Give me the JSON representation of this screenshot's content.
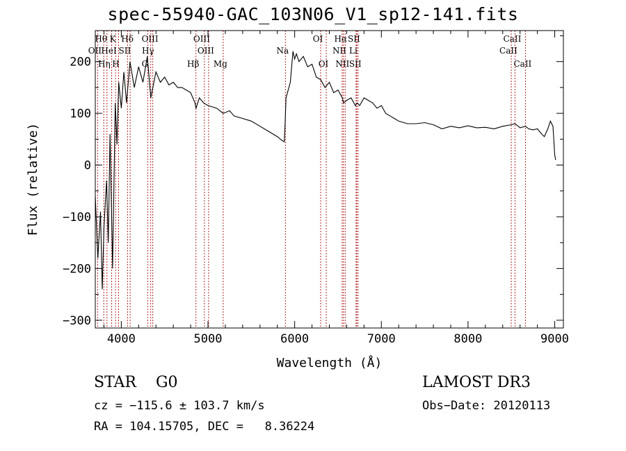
{
  "chart_data": {
    "type": "line",
    "title": "spec-55940-GAC_103N06_V1_sp12-141.fits",
    "xlabel": "Wavelength (Å)",
    "ylabel": "Flux (relative)",
    "xlim": [
      3700,
      9100
    ],
    "ylim": [
      -315,
      260
    ],
    "xticks": [
      4000,
      5000,
      6000,
      7000,
      8000,
      9000
    ],
    "yticks": [
      -300,
      -200,
      -100,
      0,
      100,
      200
    ],
    "series": [
      {
        "name": "flux",
        "color": "#000000",
        "x": [
          3700,
          3730,
          3760,
          3780,
          3800,
          3830,
          3850,
          3870,
          3900,
          3930,
          3950,
          3970,
          4000,
          4030,
          4060,
          4100,
          4150,
          4200,
          4250,
          4300,
          4340,
          4400,
          4450,
          4500,
          4550,
          4600,
          4650,
          4700,
          4750,
          4800,
          4850,
          4862,
          4900,
          4950,
          5000,
          5100,
          5175,
          5250,
          5300,
          5400,
          5500,
          5600,
          5700,
          5800,
          5850,
          5880,
          5890,
          5900,
          5950,
          5980,
          6000,
          6020,
          6050,
          6100,
          6150,
          6200,
          6250,
          6300,
          6350,
          6400,
          6450,
          6500,
          6550,
          6563,
          6600,
          6650,
          6700,
          6720,
          6750,
          6800,
          6850,
          6900,
          6950,
          7000,
          7050,
          7100,
          7150,
          7200,
          7300,
          7400,
          7500,
          7600,
          7700,
          7800,
          7900,
          8000,
          8100,
          8200,
          8300,
          8400,
          8500,
          8542,
          8600,
          8662,
          8700,
          8750,
          8800,
          8850,
          8880,
          8920,
          8950,
          8980,
          9000,
          9010
        ],
        "y": [
          -60,
          -180,
          -90,
          -240,
          -120,
          -30,
          -150,
          60,
          -200,
          120,
          40,
          160,
          110,
          180,
          120,
          200,
          150,
          190,
          160,
          210,
          130,
          180,
          160,
          170,
          155,
          160,
          150,
          150,
          145,
          140,
          120,
          110,
          130,
          120,
          115,
          110,
          100,
          105,
          95,
          90,
          85,
          75,
          65,
          55,
          48,
          45,
          80,
          130,
          160,
          220,
          205,
          215,
          200,
          210,
          190,
          195,
          170,
          165,
          150,
          160,
          140,
          145,
          130,
          120,
          125,
          130,
          115,
          120,
          115,
          130,
          125,
          120,
          110,
          115,
          100,
          95,
          90,
          85,
          80,
          80,
          82,
          78,
          70,
          75,
          72,
          76,
          72,
          73,
          70,
          75,
          78,
          80,
          72,
          75,
          70,
          68,
          70,
          60,
          55,
          70,
          85,
          75,
          20,
          10
        ]
      }
    ],
    "line_markers": [
      {
        "name": "Hθ",
        "x": 3798,
        "row": 0
      },
      {
        "name": "K",
        "x": 3934,
        "row": 0
      },
      {
        "name": "Hδ",
        "x": 4102,
        "row": 0
      },
      {
        "name": "OIII",
        "x": 4363,
        "row": 0
      },
      {
        "name": "OIII",
        "x": 4959,
        "row": 0
      },
      {
        "name": "OI",
        "x": 6300,
        "row": 0
      },
      {
        "name": "Hα",
        "x": 6563,
        "row": 0
      },
      {
        "name": "SII",
        "x": 6716,
        "row": 0
      },
      {
        "name": "CaII",
        "x": 8542,
        "row": 0
      },
      {
        "name": "OII",
        "x": 3727,
        "row": 1
      },
      {
        "name": "HeI",
        "x": 3889,
        "row": 1
      },
      {
        "name": "SII",
        "x": 4072,
        "row": 1
      },
      {
        "name": "Hγ",
        "x": 4340,
        "row": 1
      },
      {
        "name": "OIII",
        "x": 5007,
        "row": 1
      },
      {
        "name": "NII",
        "x": 6548,
        "row": 1
      },
      {
        "name": "Li",
        "x": 6708,
        "row": 1
      },
      {
        "name": "CaII",
        "x": 8498,
        "row": 1
      },
      {
        "name": "Na",
        "x": 5893,
        "row": 1
      },
      {
        "name": "Hη",
        "x": 3835,
        "row": 2
      },
      {
        "name": "H",
        "x": 3969,
        "row": 2
      },
      {
        "name": "G",
        "x": 4305,
        "row": 2
      },
      {
        "name": "Hβ",
        "x": 4861,
        "row": 2
      },
      {
        "name": "Mg",
        "x": 5175,
        "row": 2
      },
      {
        "name": "OI",
        "x": 6364,
        "row": 2
      },
      {
        "name": "NII",
        "x": 6583,
        "row": 2
      },
      {
        "name": "SII",
        "x": 6731,
        "row": 2
      },
      {
        "name": "CaII",
        "x": 8662,
        "row": 2
      }
    ],
    "marker_color": "#b22222"
  },
  "info": {
    "class_label": "STAR    G0",
    "survey_label": "LAMOST DR3",
    "cz_text": "cz = −115.6 ± 103.7 km/s",
    "obs_date_text": "Obs−Date: 20120113",
    "radec_text": "RA = 104.15705, DEC =   8.36224"
  }
}
